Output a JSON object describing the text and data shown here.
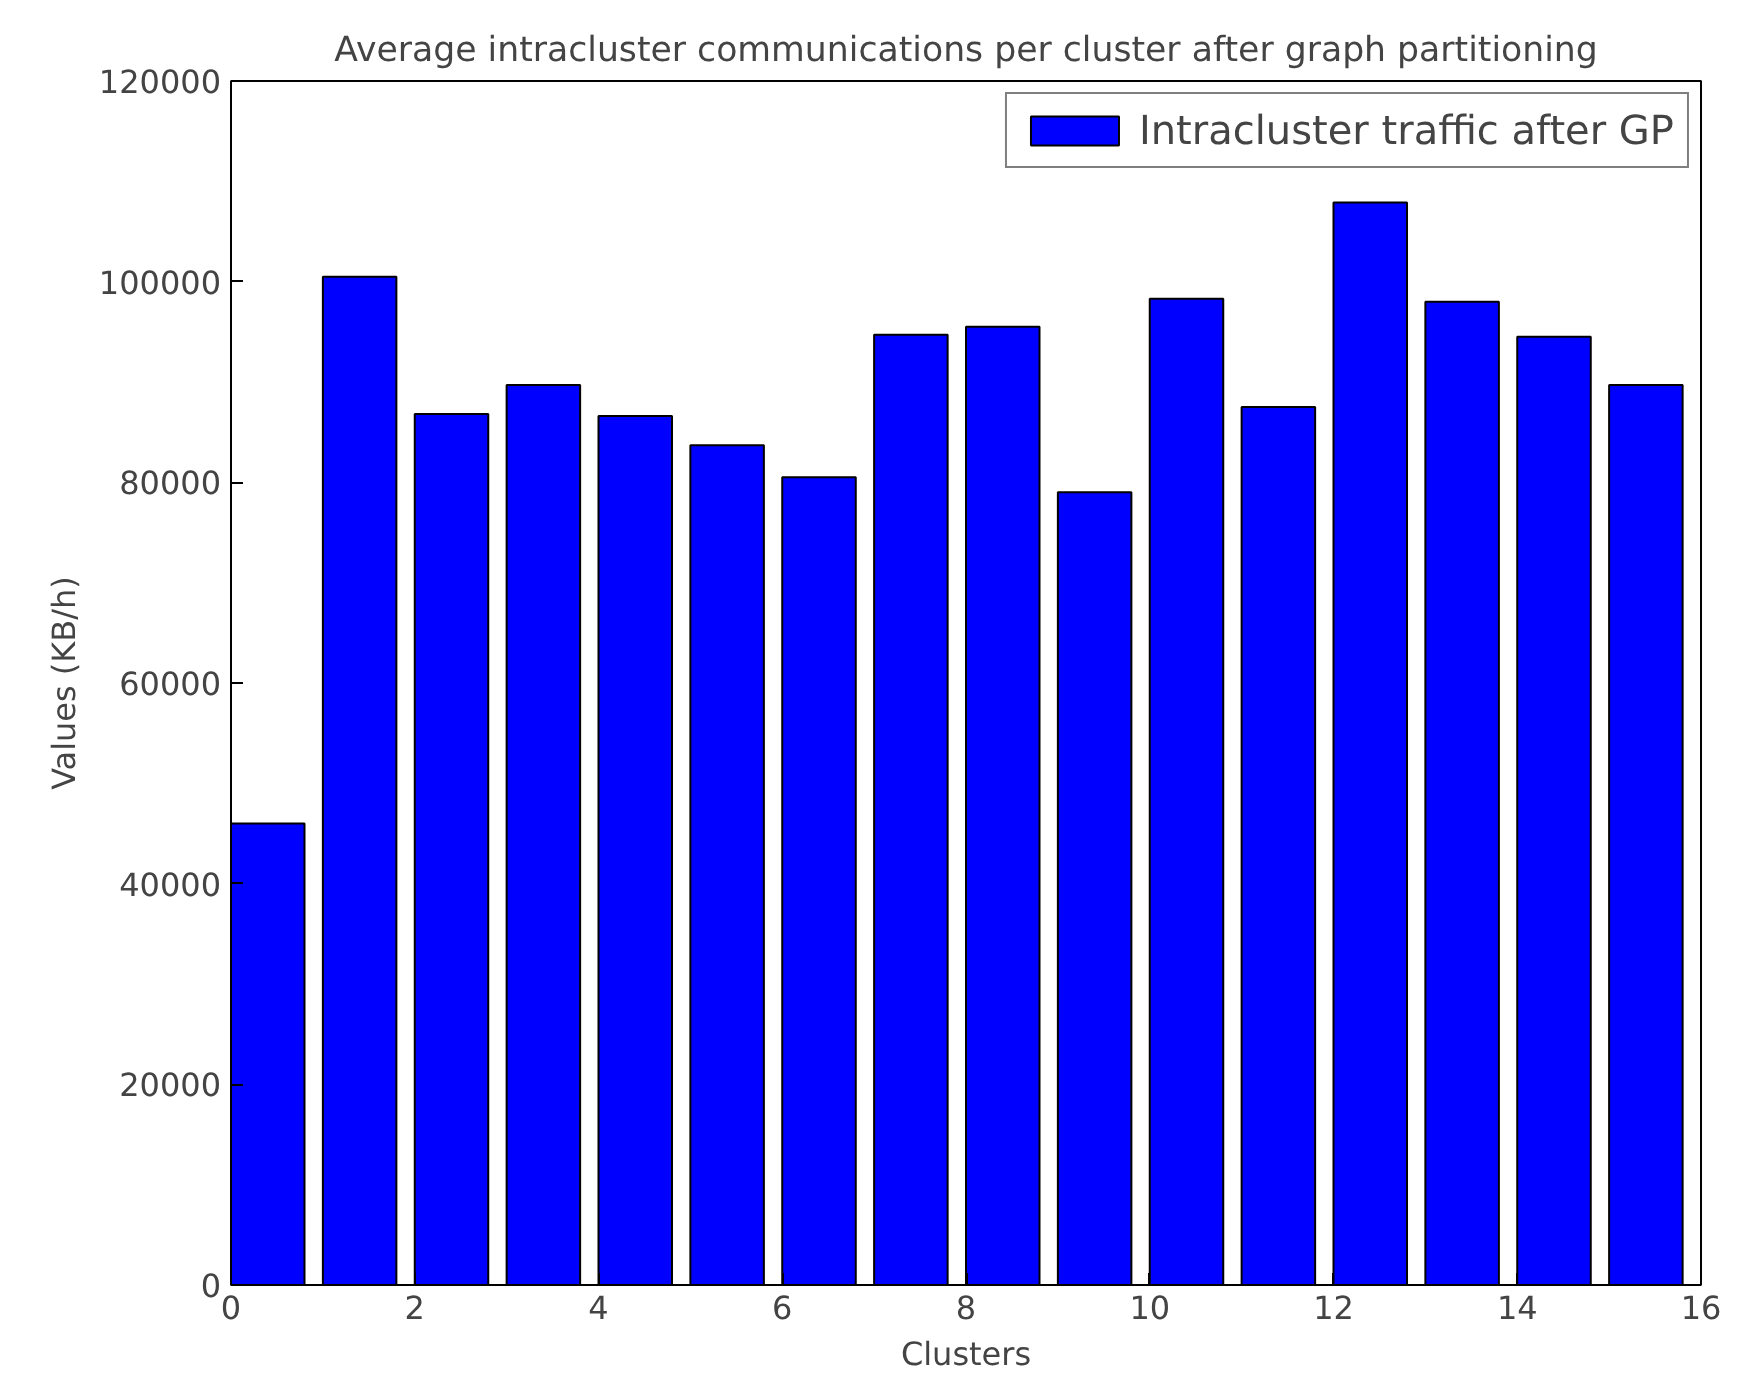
{
  "chart_data": {
    "type": "bar",
    "title": "Average intracluster communications per cluster after graph partitioning",
    "xlabel": "Clusters",
    "ylabel": "Values (KB/h)",
    "x": [
      0.4,
      1.4,
      2.4,
      3.4,
      4.4,
      5.4,
      6.4,
      7.4,
      8.4,
      9.4,
      10.4,
      11.4,
      12.4,
      13.4,
      14.4,
      15.4
    ],
    "series": [
      {
        "name": "Intracluster traffic after GP",
        "color": "#0000ff",
        "values": [
          46000,
          100500,
          86800,
          89700,
          86600,
          83700,
          80500,
          94700,
          95500,
          79000,
          98300,
          87500,
          107900,
          98000,
          94500,
          89700
        ]
      }
    ],
    "xlim": [
      0,
      16
    ],
    "xticks": [
      0,
      2,
      4,
      6,
      8,
      10,
      12,
      14,
      16
    ],
    "ylim": [
      0,
      120000
    ],
    "yticks": [
      0,
      20000,
      40000,
      60000,
      80000,
      100000,
      120000
    ],
    "grid": false,
    "legend": "top right"
  }
}
